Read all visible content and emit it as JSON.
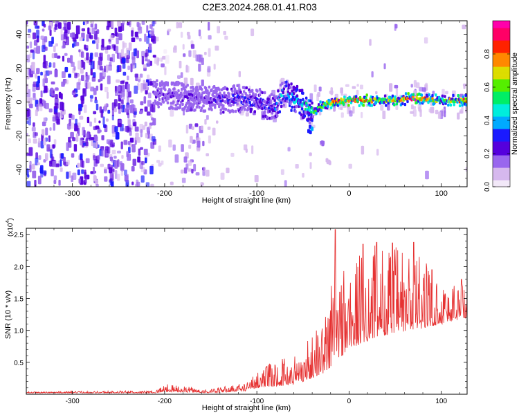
{
  "title": "C2E3.2024.268.01.41.R03",
  "chart_data": [
    {
      "type": "heatmap",
      "name": "spectrogram",
      "xlabel": "Height of straight line (km)",
      "ylabel": "Frequency (Hz)",
      "xlim": [
        -350,
        128
      ],
      "ylim": [
        -50,
        48
      ],
      "xticks": [
        -300,
        -200,
        -100,
        0,
        100
      ],
      "xtick_labels": [
        "-300",
        "-200",
        "-100",
        "0",
        "100"
      ],
      "yticks": [
        -40,
        -20,
        0,
        20,
        40
      ],
      "ytick_labels": [
        "-40",
        "-20",
        "0",
        "20",
        "40"
      ],
      "colorbar": {
        "label": "Normalized spectral amplitude",
        "range": [
          0,
          1
        ],
        "ticks": [
          0.0,
          0.2,
          0.4,
          0.6,
          0.8
        ],
        "tick_labels": [
          "0.0",
          "0.2",
          "0.4",
          "0.6",
          "0.8"
        ],
        "colors": [
          "#f2e8f8",
          "#d6b8ee",
          "#9966ee",
          "#5500dd",
          "#1a1aff",
          "#00aaff",
          "#00eedd",
          "#00ee66",
          "#55ee00",
          "#dddd00",
          "#ff8800",
          "#ff2200",
          "#ff0066",
          "#ff00aa"
        ]
      },
      "ridge": [
        {
          "x": -210,
          "y": 5,
          "amp": 0.22
        },
        {
          "x": -180,
          "y": 3,
          "amp": 0.2
        },
        {
          "x": -150,
          "y": 1,
          "amp": 0.25
        },
        {
          "x": -125,
          "y": 2,
          "amp": 0.3
        },
        {
          "x": -100,
          "y": 0,
          "amp": 0.32
        },
        {
          "x": -80,
          "y": -3,
          "amp": 0.35
        },
        {
          "x": -72,
          "y": 5,
          "amp": 0.45
        },
        {
          "x": -55,
          "y": 1,
          "amp": 0.5
        },
        {
          "x": -40,
          "y": -6,
          "amp": 0.55
        },
        {
          "x": -25,
          "y": -1,
          "amp": 0.75
        },
        {
          "x": -10,
          "y": 1,
          "amp": 0.85
        },
        {
          "x": 10,
          "y": 1,
          "amp": 0.9
        },
        {
          "x": 40,
          "y": 1,
          "amp": 0.7
        },
        {
          "x": 70,
          "y": 2,
          "amp": 0.95
        },
        {
          "x": 100,
          "y": 1,
          "amp": 0.6
        },
        {
          "x": 128,
          "y": 1,
          "amp": 0.85
        }
      ],
      "secondary_branch": [
        {
          "x": -42,
          "y": -16,
          "amp": 0.45
        },
        {
          "x": -30,
          "y": -24,
          "amp": 0.15
        },
        {
          "x": -22,
          "y": -34,
          "amp": 0.1
        }
      ]
    },
    {
      "type": "line",
      "name": "snr",
      "xlabel": "Height of straight line (km)",
      "ylabel": "SNR (10 * v/v)",
      "yscale_label": "(x10",
      "yscale_exp": "4",
      "yscale_close": ")",
      "xlim": [
        -350,
        128
      ],
      "ylim": [
        0,
        2.6
      ],
      "xticks": [
        -300,
        -200,
        -100,
        0,
        100
      ],
      "xtick_labels": [
        "-300",
        "-200",
        "-100",
        "0",
        "100"
      ],
      "yticks": [
        0.5,
        1.0,
        1.5,
        2.0,
        2.5
      ],
      "ytick_labels": [
        "0.5",
        "1.0",
        "1.5",
        "2.0",
        "2.5"
      ],
      "color": "#e63232",
      "envelope": [
        {
          "x": -350,
          "base": 0.02,
          "amp": 0.02
        },
        {
          "x": -210,
          "base": 0.02,
          "amp": 0.04
        },
        {
          "x": -200,
          "base": 0.04,
          "amp": 0.12
        },
        {
          "x": -150,
          "base": 0.02,
          "amp": 0.06
        },
        {
          "x": -110,
          "base": 0.05,
          "amp": 0.15
        },
        {
          "x": -100,
          "base": 0.1,
          "amp": 0.3
        },
        {
          "x": -60,
          "base": 0.15,
          "amp": 0.5
        },
        {
          "x": -40,
          "base": 0.25,
          "amp": 0.7
        },
        {
          "x": -25,
          "base": 0.35,
          "amp": 1.0
        },
        {
          "x": -15,
          "base": 0.5,
          "amp": 1.9
        },
        {
          "x": 0,
          "base": 0.7,
          "amp": 1.4
        },
        {
          "x": 30,
          "base": 0.9,
          "amp": 1.5
        },
        {
          "x": 70,
          "base": 1.0,
          "amp": 1.3
        },
        {
          "x": 100,
          "base": 1.1,
          "amp": 0.7
        },
        {
          "x": 128,
          "base": 1.2,
          "amp": 0.6
        }
      ],
      "peaks": [
        {
          "x": -15,
          "y": 2.58
        },
        {
          "x": -10,
          "y": 1.6
        },
        {
          "x": 15,
          "y": 2.35
        },
        {
          "x": 30,
          "y": 2.38
        },
        {
          "x": 47,
          "y": 2.37
        },
        {
          "x": 70,
          "y": 2.38
        },
        {
          "x": 90,
          "y": 1.95
        },
        {
          "x": 122,
          "y": 1.8
        }
      ]
    }
  ]
}
